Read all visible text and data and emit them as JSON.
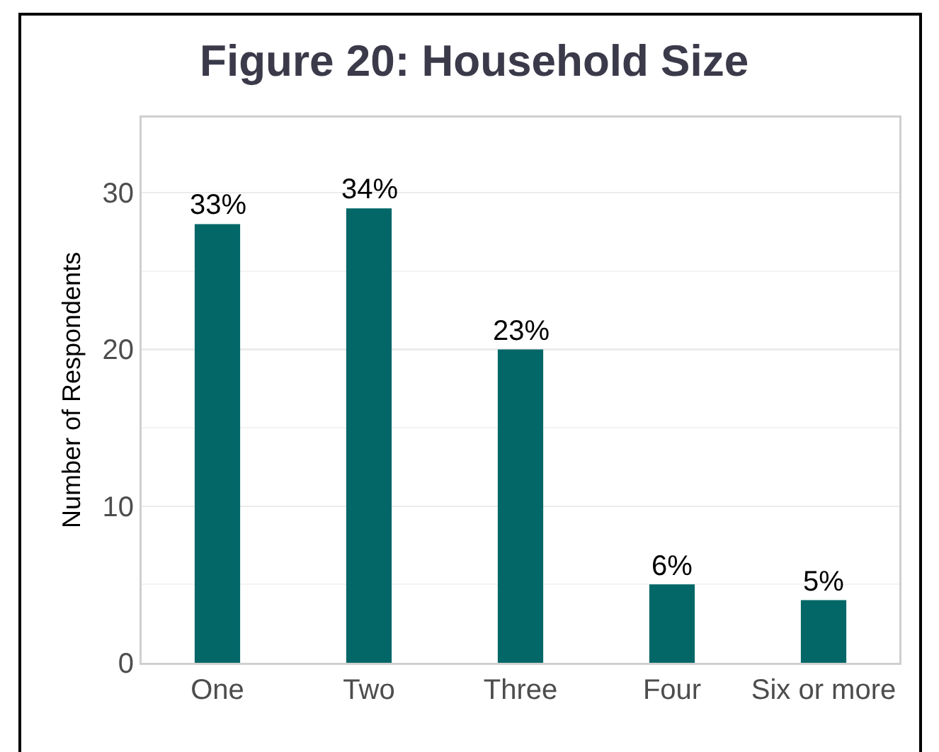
{
  "chart_data": {
    "type": "bar",
    "title": "Figure 20: Household Size",
    "ylabel": "Number of Respondents",
    "categories": [
      "One",
      "Two",
      "Three",
      "Four",
      "Six or more"
    ],
    "values": [
      28,
      29,
      20,
      5,
      4
    ],
    "color": "#036768",
    "annotations": [
      {
        "text": "33%",
        "x": "One",
        "y": 28
      },
      {
        "text": "34%",
        "x": "Two",
        "y": 29
      },
      {
        "text": "23%",
        "x": "Three",
        "y": 20
      },
      {
        "text": "6%",
        "x": "Four",
        "y": 5
      },
      {
        "text": "5%",
        "x": "Six or more",
        "y": 4
      }
    ],
    "ylim": [
      0,
      34.8
    ],
    "yticks": [
      0,
      {
        "value": 5,
        "label": null
      },
      10,
      {
        "value": 15,
        "label": null
      },
      20,
      {
        "value": 25,
        "label": null
      },
      30
    ],
    "grid": "y"
  }
}
